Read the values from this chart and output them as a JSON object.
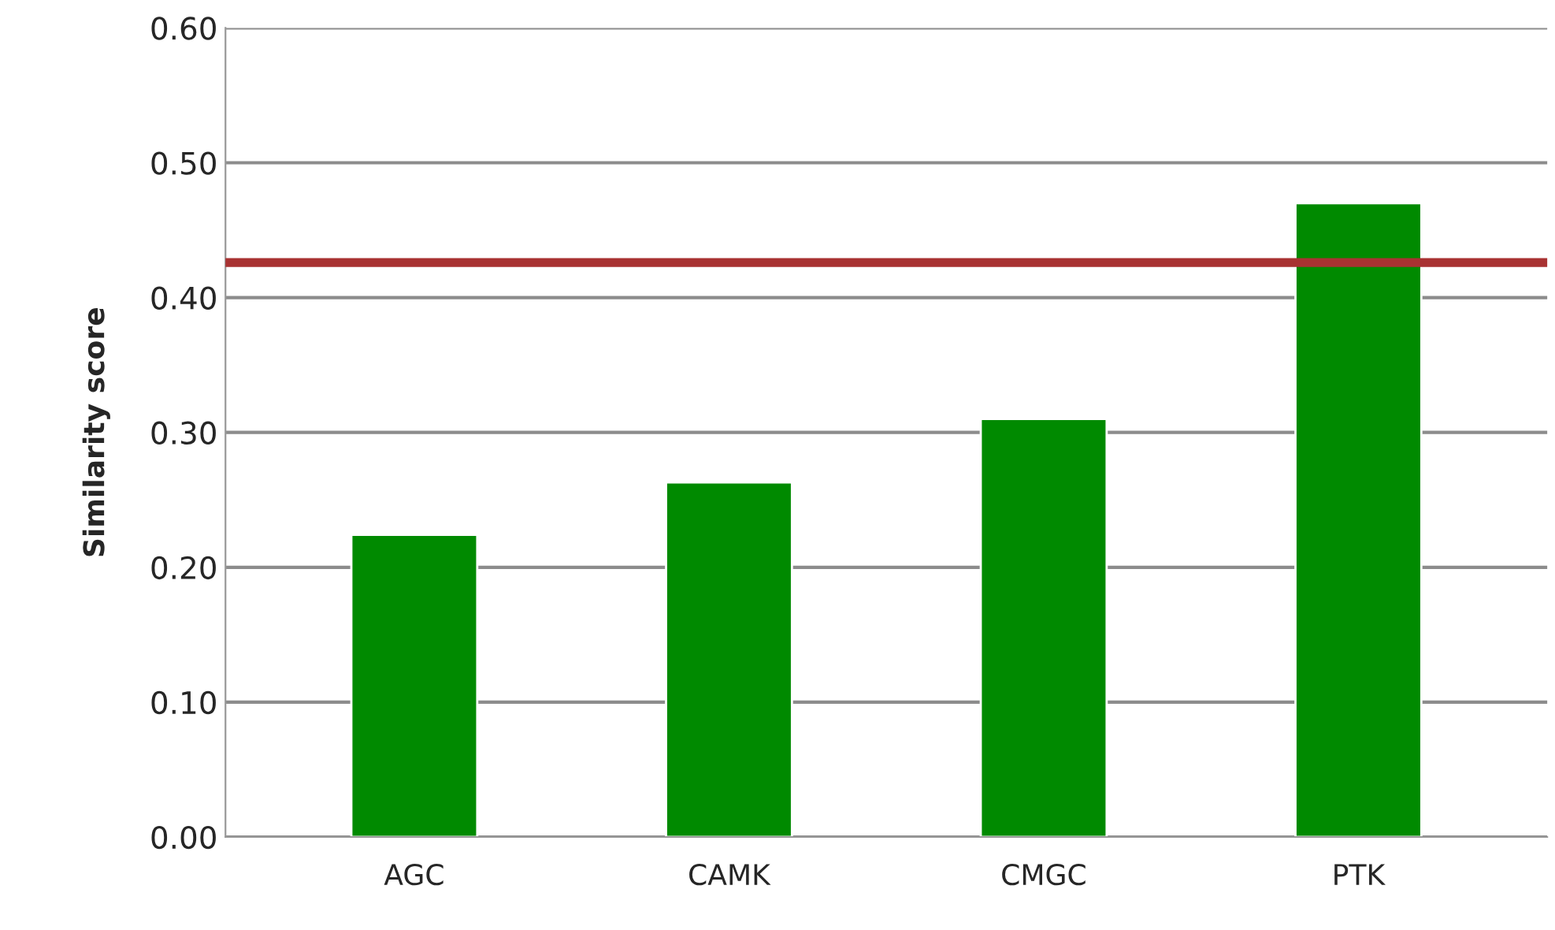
{
  "chart_data": {
    "type": "bar",
    "ylabel": "Similarity score",
    "categories": [
      "AGC",
      "CAMK",
      "CMGC",
      "PTK"
    ],
    "values": [
      0.224,
      0.263,
      0.31,
      0.47
    ],
    "color": "#008a00",
    "ylim": [
      0,
      0.6
    ],
    "yticks": [
      {
        "value": 0,
        "label": "0.00"
      },
      {
        "value": 0.1,
        "label": "0.10"
      },
      {
        "value": 0.2,
        "label": "0.20"
      },
      {
        "value": 0.3,
        "label": "0.30"
      },
      {
        "value": 0.4,
        "label": "0.40"
      },
      {
        "value": 0.5,
        "label": "0.50"
      },
      {
        "value": 0.6,
        "label": "0.60"
      }
    ],
    "ref_lines": [
      {
        "axis": "y",
        "value": 0.426,
        "color": "#a83232"
      }
    ],
    "grid": "y"
  }
}
